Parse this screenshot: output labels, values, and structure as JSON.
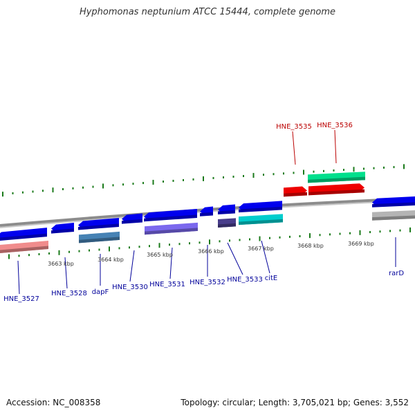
{
  "title": "Hyphomonas neptunium ATCC 15444, complete genome",
  "footer": {
    "accession": "Accession: NC_008358",
    "summary": "Topology: circular; Length: 3,705,021 bp; Genes: 3,552"
  },
  "colors": {
    "backbone": "#8c8c8c",
    "tick": "#1a7a1a",
    "forward_label": "#bb0000",
    "reverse_label": "#00009a",
    "axis_label": "#333333"
  },
  "scale_labels": [
    "3663 kbp",
    "3664 kbp",
    "3665 kbp",
    "3666 kbp",
    "3667 kbp",
    "3668 kbp",
    "3669 kbp"
  ],
  "genes": [
    {
      "label": "HNE_3527",
      "strand": "reverse",
      "colors": [
        "#0000ee",
        "#f08c8c"
      ]
    },
    {
      "label": "HNE_3528",
      "strand": "reverse",
      "colors": [
        "#0000ee"
      ]
    },
    {
      "label": "dapF",
      "strand": "reverse",
      "colors": [
        "#0000ee",
        "#4682b4"
      ]
    },
    {
      "label": "HNE_3530",
      "strand": "reverse",
      "colors": [
        "#0000ee"
      ]
    },
    {
      "label": "HNE_3531",
      "strand": "reverse",
      "colors": [
        "#0000ee",
        "#7b68ee"
      ]
    },
    {
      "label": "HNE_3532",
      "strand": "reverse",
      "colors": [
        "#0000ee"
      ]
    },
    {
      "label": "HNE_3533",
      "strand": "reverse",
      "colors": [
        "#0000ee",
        "#483d8b"
      ]
    },
    {
      "label": "citE",
      "strand": "reverse",
      "colors": [
        "#0000ee",
        "#00cdcd"
      ]
    },
    {
      "label": "HNE_3535",
      "strand": "forward",
      "colors": [
        "#ee0000"
      ]
    },
    {
      "label": "HNE_3536",
      "strand": "forward",
      "colors": [
        "#ee0000",
        "#00e08c"
      ]
    },
    {
      "label": "rarD",
      "strand": "reverse",
      "colors": [
        "#0000ee",
        "#b4b4b4"
      ]
    }
  ]
}
